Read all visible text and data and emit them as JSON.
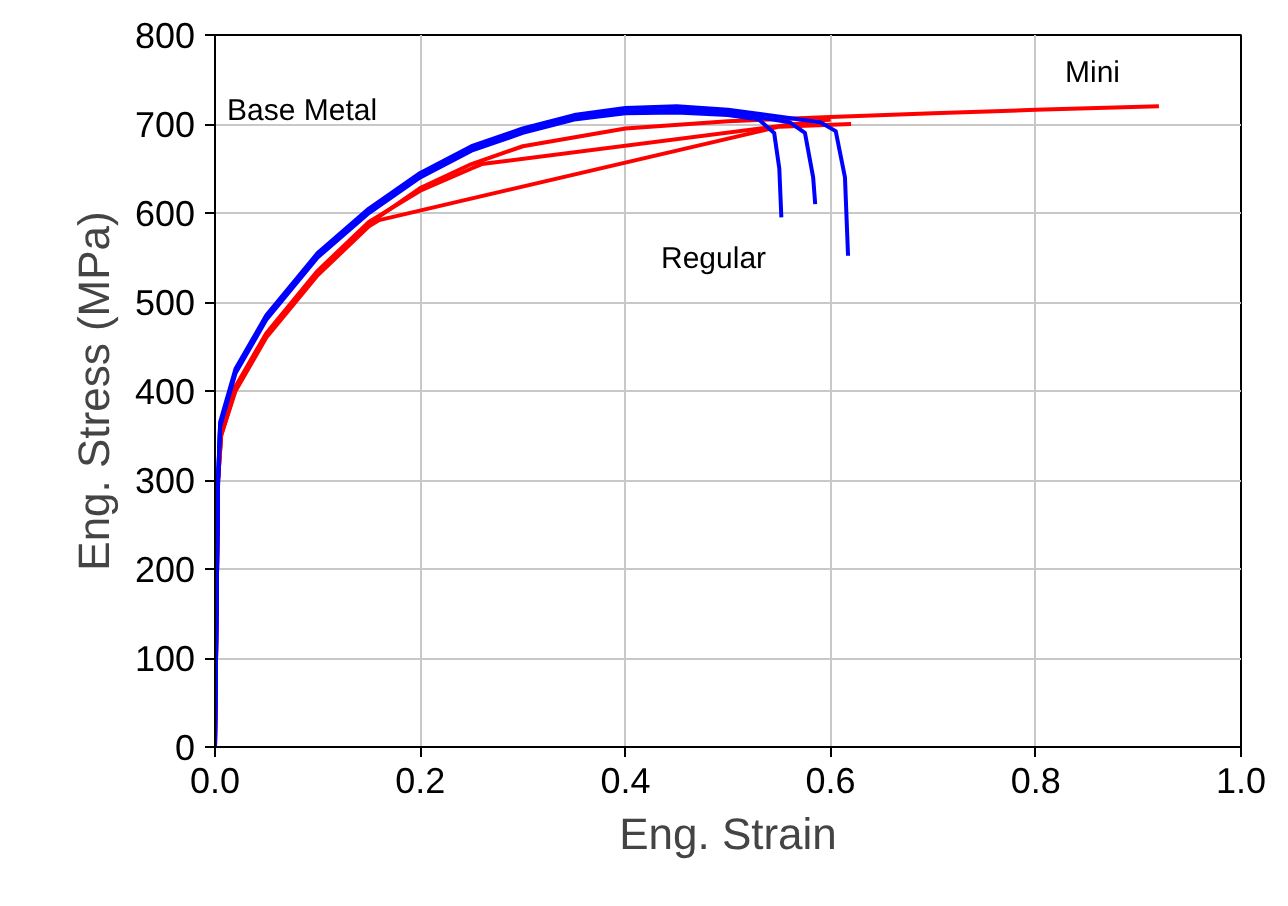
{
  "chart_data": {
    "type": "line",
    "xlabel": "Eng. Strain",
    "ylabel": "Eng. Stress (MPa)",
    "xlim": [
      0,
      1
    ],
    "ylim": [
      0,
      800
    ],
    "xticks": [
      {
        "value": 0,
        "label": "0.0"
      },
      0.2,
      0.4,
      0.6,
      0.8,
      {
        "value": 1,
        "label": "1.0"
      }
    ],
    "yticks": [
      0,
      100,
      200,
      300,
      400,
      500,
      600,
      700,
      800
    ],
    "grid": true,
    "line_style": "solid",
    "marker": "none",
    "annotations": [
      "Base Metal",
      "Regular",
      "Mini"
    ],
    "series": [
      {
        "color": "#ff0000",
        "x": [
          0,
          0.003,
          0.006,
          0.02,
          0.05,
          0.1,
          0.15,
          0.16,
          0.55,
          0.62
        ],
        "values": [
          0,
          300,
          350,
          400,
          460,
          530,
          585,
          592,
          697,
          700
        ]
      },
      {
        "color": "#ff0000",
        "x": [
          0,
          0.003,
          0.006,
          0.02,
          0.05,
          0.1,
          0.15,
          0.2,
          0.25,
          0.26,
          0.6
        ],
        "values": [
          0,
          300,
          355,
          405,
          465,
          535,
          590,
          625,
          650,
          655,
          705
        ]
      },
      {
        "color": "#ff0000",
        "x": [
          0,
          0.003,
          0.006,
          0.02,
          0.05,
          0.1,
          0.15,
          0.2,
          0.25,
          0.3,
          0.4,
          0.5,
          0.6,
          0.7,
          0.8,
          0.92
        ],
        "values": [
          0,
          300,
          350,
          402,
          462,
          532,
          588,
          628,
          655,
          675,
          695,
          703,
          708,
          712,
          716,
          720
        ]
      },
      {
        "color": "#0000ff",
        "x": [
          0,
          0.003,
          0.005,
          0.02,
          0.05,
          0.1,
          0.15,
          0.2,
          0.25,
          0.3,
          0.35,
          0.4,
          0.45,
          0.5,
          0.53,
          0.545,
          0.55,
          0.552
        ],
        "values": [
          0,
          300,
          360,
          420,
          480,
          550,
          600,
          640,
          670,
          690,
          705,
          712,
          713,
          710,
          705,
          690,
          650,
          595
        ]
      },
      {
        "color": "#0000ff",
        "x": [
          0,
          0.003,
          0.005,
          0.02,
          0.05,
          0.1,
          0.15,
          0.2,
          0.25,
          0.3,
          0.35,
          0.4,
          0.45,
          0.5,
          0.56,
          0.575,
          0.583,
          0.585
        ],
        "values": [
          0,
          300,
          362,
          422,
          482,
          552,
          602,
          642,
          672,
          692,
          707,
          714,
          716,
          713,
          702,
          690,
          640,
          610
        ]
      },
      {
        "color": "#0000ff",
        "x": [
          0,
          0.003,
          0.005,
          0.02,
          0.05,
          0.1,
          0.15,
          0.2,
          0.25,
          0.3,
          0.35,
          0.4,
          0.45,
          0.5,
          0.59,
          0.605,
          0.614,
          0.617
        ],
        "values": [
          0,
          300,
          365,
          425,
          485,
          555,
          605,
          645,
          675,
          695,
          710,
          718,
          720,
          716,
          702,
          692,
          640,
          552
        ]
      }
    ]
  }
}
